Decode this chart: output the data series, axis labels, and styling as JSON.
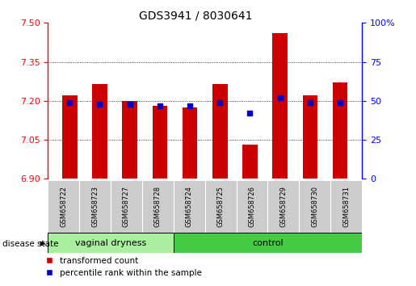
{
  "title": "GDS3941 / 8030641",
  "samples": [
    "GSM658722",
    "GSM658723",
    "GSM658727",
    "GSM658728",
    "GSM658724",
    "GSM658725",
    "GSM658726",
    "GSM658729",
    "GSM658730",
    "GSM658731"
  ],
  "red_values": [
    7.22,
    7.265,
    7.2,
    7.18,
    7.175,
    7.265,
    7.03,
    7.46,
    7.22,
    7.27
  ],
  "blue_percentiles": [
    49,
    48,
    48,
    47,
    47,
    49,
    42,
    52,
    49,
    49
  ],
  "ylim": [
    6.9,
    7.5
  ],
  "yticks_left": [
    6.9,
    7.05,
    7.2,
    7.35,
    7.5
  ],
  "yticks_right": [
    0,
    25,
    50,
    75,
    100
  ],
  "bar_color": "#cc0000",
  "dot_color": "#0000cc",
  "group1_label": "vaginal dryness",
  "group2_label": "control",
  "group1_count": 4,
  "group2_count": 6,
  "group_bg1": "#aaeea0",
  "group_bg2": "#44cc44",
  "sample_bg": "#cccccc",
  "legend_red": "transformed count",
  "legend_blue": "percentile rank within the sample",
  "disease_label": "disease state",
  "bar_width": 0.5,
  "base_value": 6.9
}
